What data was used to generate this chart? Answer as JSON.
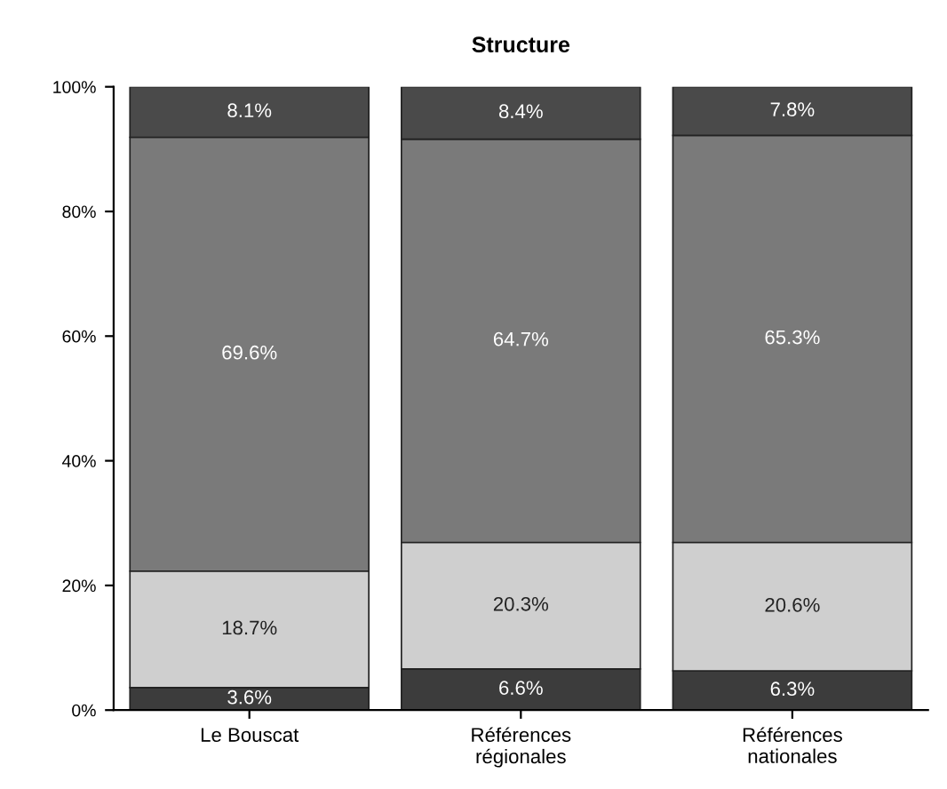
{
  "chart_data": {
    "type": "bar",
    "title": "Structure",
    "stacked": true,
    "categories": [
      "Le Bouscat",
      "Références\nrégionales",
      "Références\nnationales"
    ],
    "series": [
      {
        "color": "#3c3c3c",
        "values": [
          3.6,
          6.6,
          6.3
        ],
        "value_labels": [
          "3.6%",
          "6.6%",
          "6.3%"
        ]
      },
      {
        "color": "#cfcfcf",
        "values": [
          18.7,
          20.3,
          20.6
        ],
        "value_labels": [
          "18.7%",
          "20.3%",
          "20.6%"
        ]
      },
      {
        "color": "#7a7a7a",
        "values": [
          69.6,
          64.7,
          65.3
        ],
        "value_labels": [
          "69.6%",
          "64.7%",
          "65.3%"
        ]
      },
      {
        "color": "#4a4a4a",
        "values": [
          8.1,
          8.4,
          7.8
        ],
        "value_labels": [
          "8.1%",
          "8.4%",
          "7.8%"
        ]
      }
    ],
    "ylim": [
      0,
      100
    ],
    "yticks": [
      {
        "value": 0,
        "label": "0%"
      },
      {
        "value": 20,
        "label": "20%"
      },
      {
        "value": 40,
        "label": "40%"
      },
      {
        "value": 60,
        "label": "60%"
      },
      {
        "value": 80,
        "label": "80%"
      },
      {
        "value": 100,
        "label": "100%"
      }
    ],
    "grid": false,
    "legend": false
  }
}
